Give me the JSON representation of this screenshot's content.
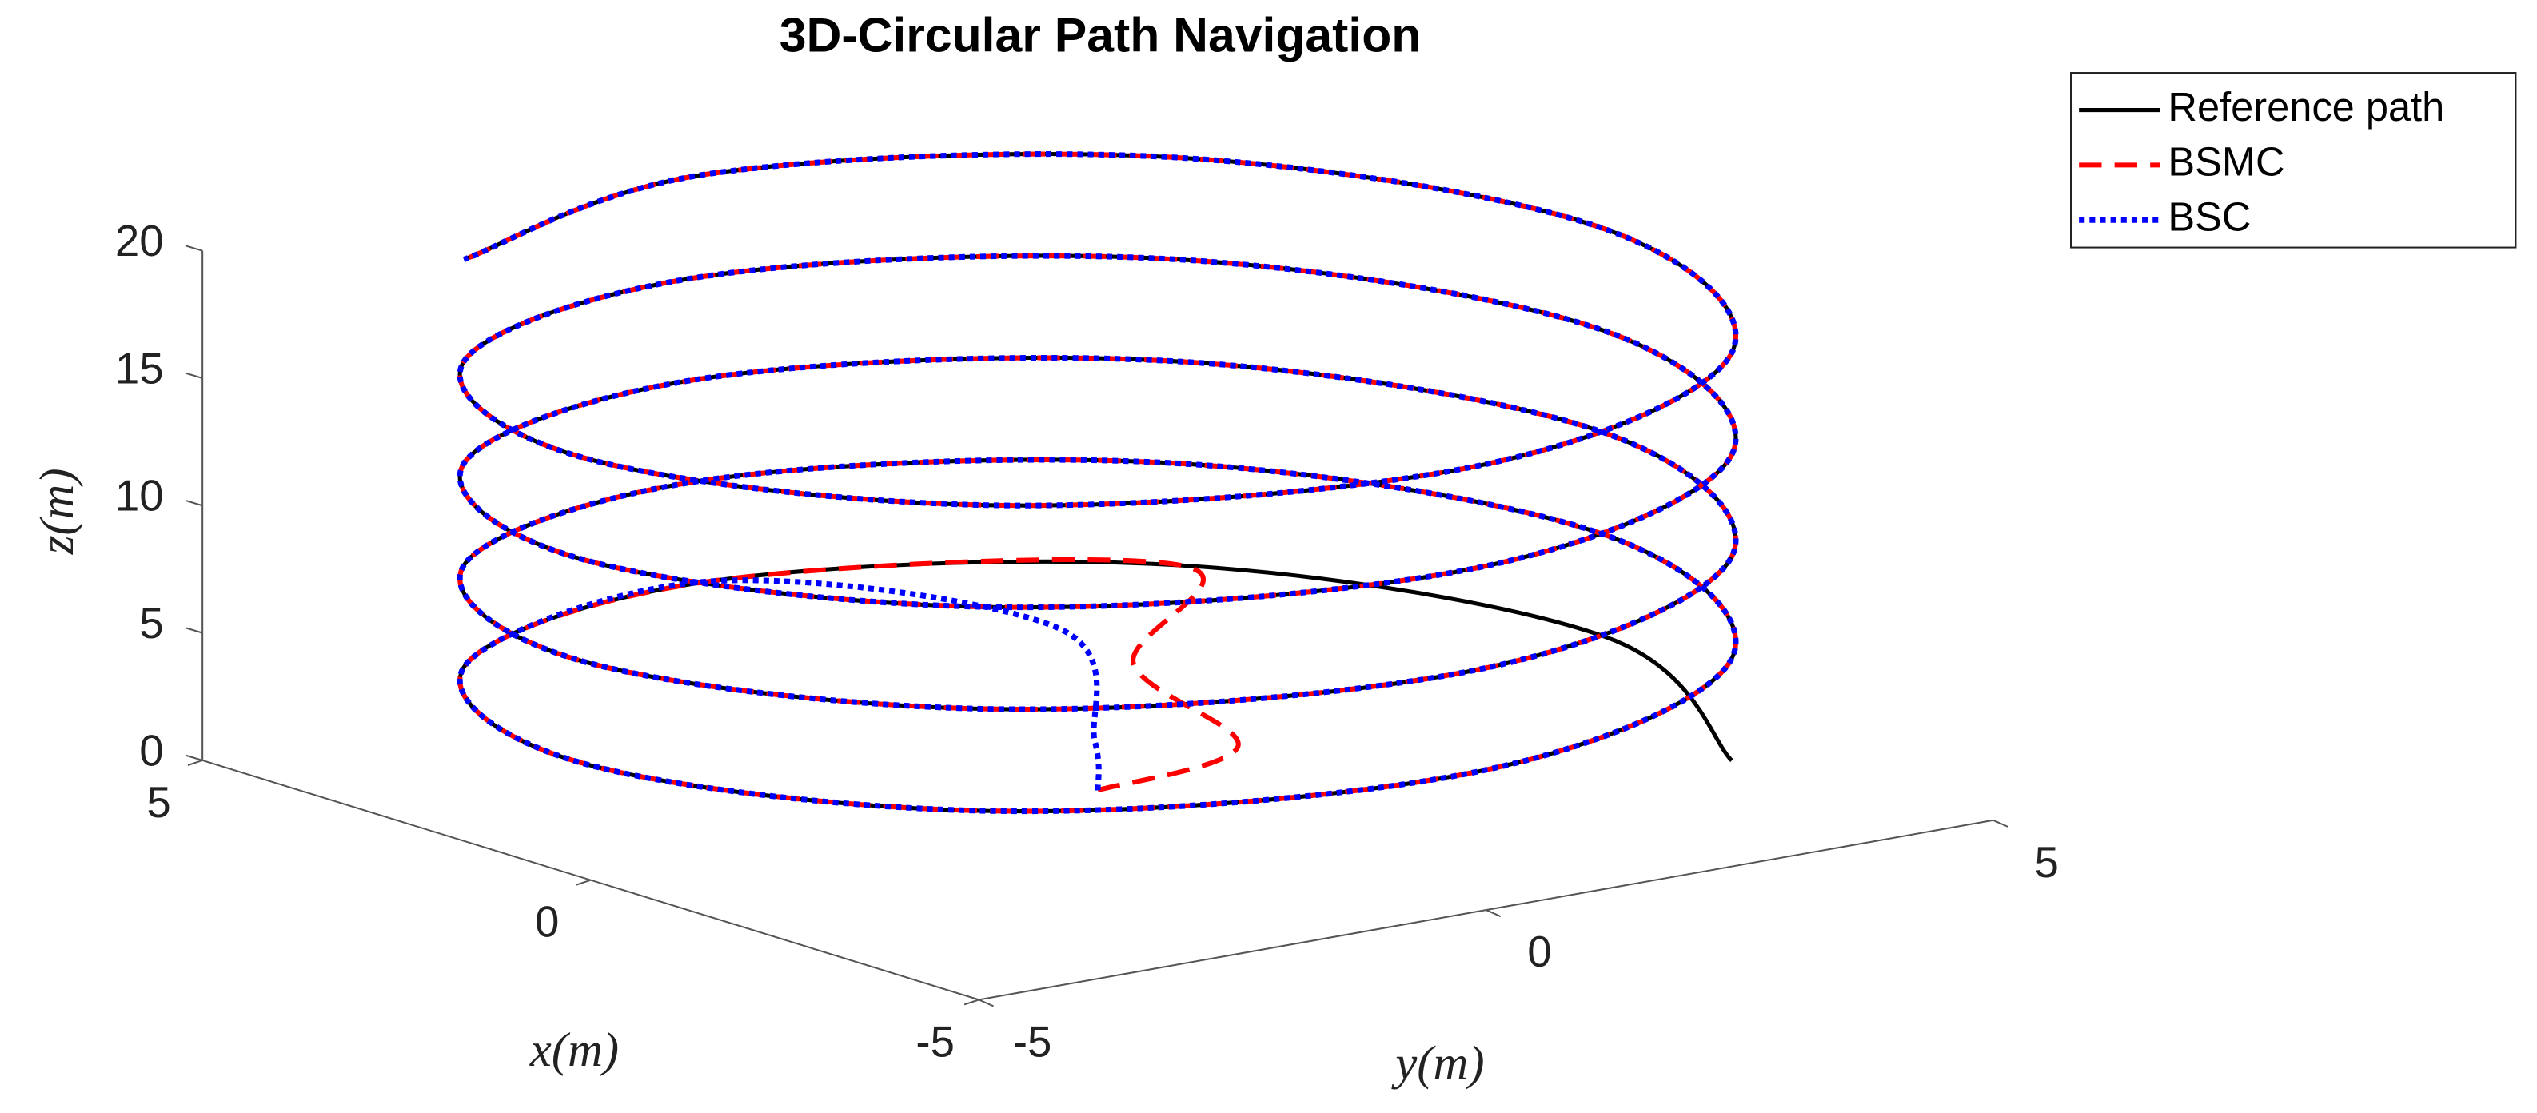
{
  "chart_data": {
    "type": "line3d",
    "title": "3D-Circular Path Navigation",
    "xlabel": "x(m)",
    "ylabel": "y(m)",
    "zlabel": "z(m)",
    "xlim": [
      -5,
      5
    ],
    "ylim": [
      -5,
      5
    ],
    "zlim": [
      0,
      20
    ],
    "xticks": [
      -5,
      0,
      5
    ],
    "yticks": [
      -5,
      0,
      5
    ],
    "zticks": [
      0,
      5,
      10,
      15,
      20
    ],
    "legend": "upper right",
    "series": [
      {
        "name": "Reference path",
        "color": "#000000",
        "dash": "solid",
        "x": [
          -3.54,
          0,
          3.54,
          5,
          3.54,
          0,
          -3.54,
          -5,
          -3.54,
          0,
          3.54,
          5,
          3.54,
          0,
          -3.54,
          -5,
          -3.54,
          0,
          3.54,
          5,
          3.54,
          0,
          -3.54,
          -5,
          -3.54,
          0,
          3.54,
          5,
          3.54,
          0,
          -3.54,
          -5,
          -3.54,
          0,
          3.54,
          5,
          3.54
        ],
        "y": [
          3.54,
          5,
          3.54,
          0,
          -3.54,
          -5,
          -3.54,
          0,
          3.54,
          5,
          3.54,
          0,
          -3.54,
          -5,
          -3.54,
          0,
          3.54,
          5,
          3.54,
          0,
          -3.54,
          -5,
          -3.54,
          0,
          3.54,
          5,
          3.54,
          0,
          -3.54,
          -5,
          -3.54,
          0,
          3.54,
          5,
          3.54,
          0,
          -3.54
        ],
        "z": [
          2,
          2.5,
          3,
          3.5,
          4,
          4.5,
          5,
          5.5,
          6,
          6.5,
          7,
          7.5,
          8,
          8.5,
          9,
          9.5,
          10,
          10.5,
          11,
          11.5,
          12,
          12.5,
          13,
          13.5,
          14,
          14.5,
          15,
          15.5,
          16,
          16.5,
          17,
          17.5,
          18,
          18.5,
          19,
          19.5,
          20
        ]
      },
      {
        "name": "BSMC",
        "color": "#ff0000",
        "dash": "dashed",
        "x": [
          0,
          -0.5,
          1.5,
          3.54,
          5,
          3.54,
          0,
          -3.54,
          -5,
          -3.54,
          0,
          3.54,
          5,
          3.54,
          0,
          -3.54,
          -5,
          -3.54,
          0,
          3.54,
          5,
          3.54,
          0,
          -3.54,
          -5,
          -3.54,
          0,
          3.54,
          5,
          3.54,
          0,
          -3.54,
          -5,
          -3.54,
          0,
          3.54,
          5,
          3.54
        ],
        "y": [
          0,
          1,
          1.5,
          3.54,
          0,
          -3.54,
          -5,
          -3.54,
          0,
          3.54,
          5,
          3.54,
          0,
          -3.54,
          -5,
          -3.54,
          0,
          3.54,
          5,
          3.54,
          0,
          -3.54,
          -5,
          -3.54,
          0,
          3.54,
          5,
          3.54,
          0,
          -3.54,
          -5,
          -3.54,
          0,
          3.54,
          5,
          3.54,
          0,
          -3.54
        ],
        "z": [
          0,
          1.5,
          2.5,
          3,
          3.5,
          4,
          4.5,
          5,
          5.5,
          6,
          6.5,
          7,
          7.5,
          8,
          8.5,
          9,
          9.5,
          10,
          10.5,
          11,
          11.5,
          12,
          12.5,
          13,
          13.5,
          14,
          14.5,
          15,
          15.5,
          16,
          16.5,
          17,
          17.5,
          18,
          18.5,
          19,
          19.5,
          20
        ]
      },
      {
        "name": "BSC",
        "color": "#0000ff",
        "dash": "dotted",
        "x": [
          0,
          0.3,
          2.5,
          5,
          3.54,
          0,
          -3.54,
          -5,
          -3.54,
          0,
          3.54,
          5,
          3.54,
          0,
          -3.54,
          -5,
          -3.54,
          0,
          3.54,
          5,
          3.54,
          0,
          -3.54,
          -5,
          -3.54,
          0,
          3.54,
          5,
          3.54,
          0,
          -3.54,
          -5,
          -3.54,
          0,
          3.54,
          5,
          3.54
        ],
        "y": [
          0,
          0.2,
          1.5,
          0,
          -3.54,
          -5,
          -3.54,
          0,
          3.54,
          5,
          3.54,
          0,
          -3.54,
          -5,
          -3.54,
          0,
          3.54,
          5,
          3.54,
          0,
          -3.54,
          -5,
          -3.54,
          0,
          3.54,
          5,
          3.54,
          0,
          -3.54,
          -5,
          -3.54,
          0,
          3.54,
          5,
          3.54,
          0,
          -3.54
        ],
        "z": [
          0,
          1.5,
          3,
          3.5,
          4,
          4.5,
          5,
          5.5,
          6,
          6.5,
          7,
          7.5,
          8,
          8.5,
          9,
          9.5,
          10,
          10.5,
          11,
          11.5,
          12,
          12.5,
          13,
          13.5,
          14,
          14.5,
          15,
          15.5,
          16,
          16.5,
          17,
          17.5,
          18,
          18.5,
          19,
          19.5,
          20
        ]
      }
    ]
  }
}
